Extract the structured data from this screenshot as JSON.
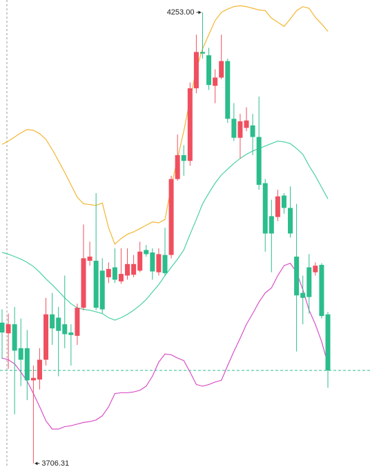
{
  "chart_data": {
    "type": "candlestick",
    "open": [
      3877,
      3864,
      3875,
      3846,
      3846,
      3807,
      3808,
      3832,
      3887,
      3883,
      3875,
      3865,
      3861,
      3895,
      3952,
      3952,
      3940,
      3932,
      3944,
      3927,
      3934,
      3935,
      3940,
      3965,
      3962,
      3938,
      3959,
      3959,
      4051,
      4080,
      4073,
      4161,
      4205,
      4201,
      4164,
      4174,
      4194,
      4124,
      4101,
      4113,
      4116,
      4102,
      4046,
      4006,
      4005,
      4031,
      4016,
      3957,
      3913,
      3944,
      3938,
      3947,
      3887
    ],
    "high": [
      3893,
      3888,
      3896,
      3882,
      3868,
      3825,
      3846,
      3907,
      3913,
      3896,
      3934,
      3875,
      3900,
      3996,
      3975,
      4034,
      3955,
      3950,
      3967,
      3967,
      3967,
      3959,
      3975,
      3971,
      3967,
      3967,
      3992,
      4055,
      4105,
      4092,
      4168,
      4226,
      4253,
      4210,
      4184,
      4226,
      4197,
      4143,
      4130,
      4138,
      4130,
      4151,
      4051,
      4026,
      4038,
      4034,
      4042,
      4021,
      3934,
      3960,
      3950,
      3949,
      3890
    ],
    "low": [
      3833,
      3821,
      3766,
      3800,
      3783,
      3706.31,
      3796,
      3825,
      3850,
      3812,
      3846,
      3825,
      3850,
      3892,
      3946,
      3892,
      3888,
      3925,
      3925,
      3924,
      3929,
      3932,
      3938,
      3957,
      3929,
      3934,
      3934,
      3955,
      4049,
      4055,
      4067,
      4155,
      4197,
      4159,
      4143,
      4172,
      4119,
      4097,
      4076,
      4109,
      4080,
      4038,
      3963,
      3938,
      4000,
      4009,
      3980,
      3842,
      3875,
      3888,
      3934,
      3882,
      3798
    ],
    "close": [
      3865,
      3875,
      3843,
      3832,
      3807,
      3810,
      3832,
      3887,
      3870,
      3867,
      3863,
      3862,
      3895,
      3955,
      3957,
      3895,
      3893,
      3942,
      3929,
      3936,
      3948,
      3948,
      3963,
      3960,
      3939,
      3960,
      3937,
      4051,
      4080,
      4073,
      4161,
      4205,
      4203,
      4165,
      4174,
      4194,
      4124,
      4101,
      4121,
      4122,
      4102,
      4044,
      3985,
      3985,
      4030,
      4016,
      3985,
      3910,
      3907,
      3908,
      3946,
      3885,
      3819
    ],
    "up_color": "#ef4f5f",
    "down_color": "#2bbd8c",
    "lines": [
      {
        "color": "#f2b632",
        "values": [
          4093,
          4097,
          4102,
          4107,
          4111,
          4110,
          4106,
          4099,
          4087,
          4073,
          4059,
          4044,
          4029,
          4021,
          4020,
          4019,
          4022,
          3992,
          3972,
          3979,
          3984,
          3987,
          3991,
          3995,
          3999,
          3998,
          4002,
          4042,
          4076,
          4109,
          4147,
          4184,
          4209,
          4226,
          4243,
          4253,
          4257,
          4260,
          4261,
          4260,
          4258,
          4256,
          4255,
          4246,
          4241,
          4236,
          4245,
          4255,
          4260,
          4258,
          4247,
          4239,
          4230
        ]
      },
      {
        "color": "#48d1a2",
        "values": [
          3962,
          3960,
          3957,
          3954,
          3950,
          3945,
          3938,
          3930,
          3923,
          3915,
          3907,
          3900,
          3895,
          3893,
          3892,
          3890,
          3888,
          3883,
          3880,
          3883,
          3887,
          3892,
          3898,
          3905,
          3914,
          3923,
          3934,
          3944,
          3954,
          3965,
          3984,
          4002,
          4021,
          4034,
          4046,
          4056,
          4063,
          4070,
          4076,
          4081,
          4085,
          4088,
          4091,
          4094,
          4097,
          4096,
          4094,
          4088,
          4081,
          4067,
          4055,
          4041,
          4027
        ]
      },
      {
        "color": "#d94fc8",
        "values": [
          3834,
          3832,
          3827,
          3817,
          3806,
          3791,
          3775,
          3758,
          3748,
          3748,
          3751,
          3752,
          3754,
          3756,
          3757,
          3759,
          3764,
          3775,
          3791,
          3792,
          3792,
          3793,
          3795,
          3800,
          3812,
          3829,
          3839,
          3838,
          3834,
          3831,
          3817,
          3802,
          3800,
          3802,
          3805,
          3807,
          3825,
          3842,
          3858,
          3875,
          3888,
          3902,
          3913,
          3919,
          3934,
          3946,
          3949,
          3938,
          3917,
          3892,
          3875,
          3854,
          3827
        ]
      }
    ],
    "high_label": "4253.00",
    "low_label": "3706.31",
    "ylim": [
      3702,
      4268
    ]
  }
}
